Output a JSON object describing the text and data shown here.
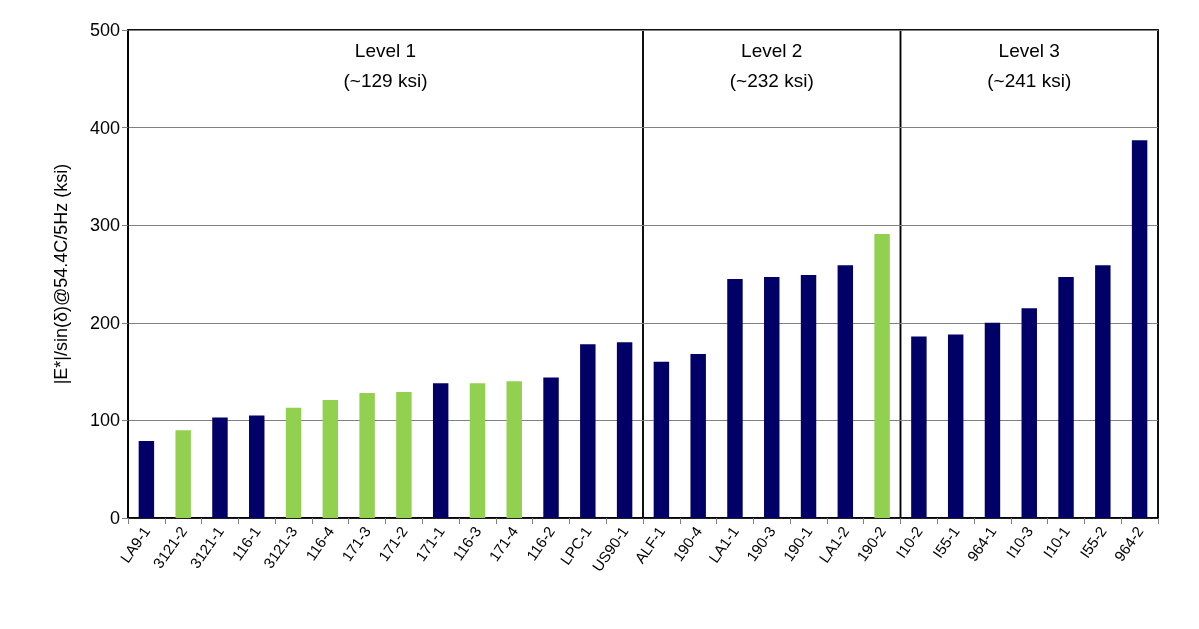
{
  "chart_data": {
    "type": "bar",
    "ylabel": "|E*|/sin(δ)@54.4C/5Hz (ksi)",
    "categories": [
      "LA9-1",
      "3121-2",
      "3121-1",
      "116-1",
      "3121-3",
      "116-4",
      "171-3",
      "171-2",
      "171-1",
      "116-3",
      "171-4",
      "116-2",
      "LPC-1",
      "US90-1",
      "ALF-1",
      "190-4",
      "LA1-1",
      "190-3",
      "190-1",
      "LA1-2",
      "190-2",
      "I10-2",
      "I55-1",
      "964-1",
      "I10-3",
      "I10-1",
      "I55-2",
      "964-2"
    ],
    "values": [
      79,
      90,
      103,
      105,
      113,
      121,
      128,
      129,
      138,
      138,
      140,
      144,
      178,
      180,
      160,
      168,
      245,
      247,
      249,
      259,
      291,
      186,
      188,
      200,
      215,
      247,
      259,
      387
    ],
    "colors": [
      "#000066",
      "#92d050",
      "#000066",
      "#000066",
      "#92d050",
      "#92d050",
      "#92d050",
      "#92d050",
      "#000066",
      "#92d050",
      "#92d050",
      "#000066",
      "#000066",
      "#000066",
      "#000066",
      "#000066",
      "#000066",
      "#000066",
      "#000066",
      "#000066",
      "#92d050",
      "#000066",
      "#000066",
      "#000066",
      "#000066",
      "#000066",
      "#000066",
      "#000066"
    ],
    "ylim": [
      0,
      500
    ],
    "yticks": [
      0,
      100,
      200,
      300,
      400,
      500
    ],
    "grid": "y",
    "bands": [
      {
        "axis": "x",
        "from": "LA9-1",
        "to": "US90-1",
        "label": "Level 1\n(~129 ksi)"
      },
      {
        "axis": "x",
        "from": "ALF-1",
        "to": "190-2",
        "label": "Level 2\n(~232 ksi)"
      },
      {
        "axis": "x",
        "from": "I10-2",
        "to": "964-2",
        "label": "Level 3\n(~241 ksi)"
      }
    ]
  }
}
